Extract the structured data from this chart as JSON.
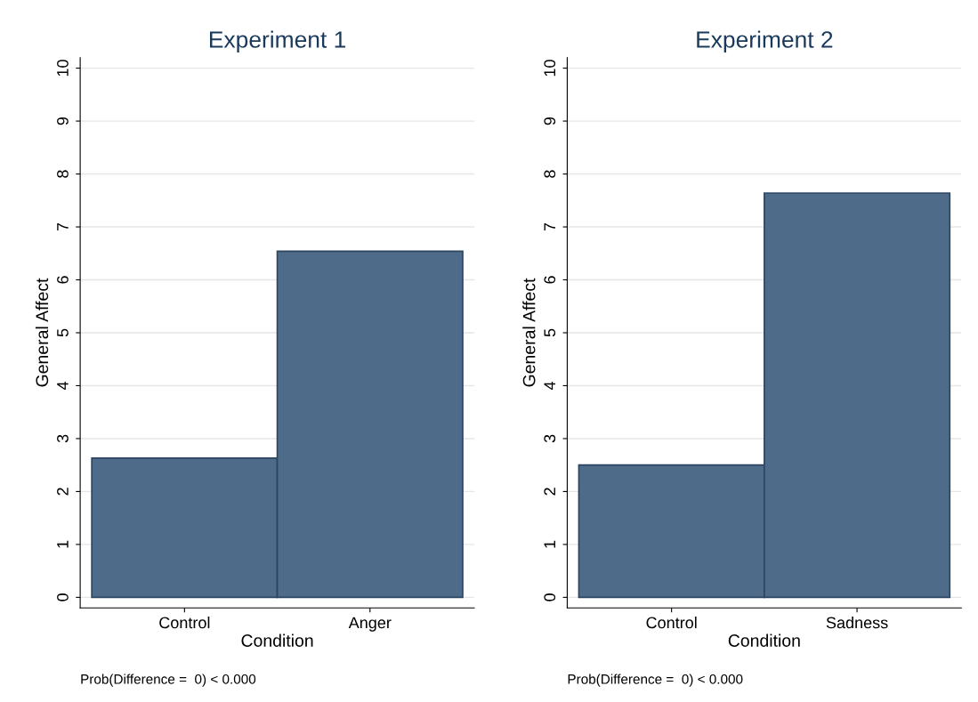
{
  "chart_data": [
    {
      "type": "bar",
      "title": "Experiment 1",
      "xlabel": "Condition",
      "ylabel": "General Affect",
      "categories": [
        "Control",
        "Anger"
      ],
      "values": [
        2.63,
        6.54
      ],
      "color": "#4e6b89",
      "ylim": [
        -0.2,
        10.2
      ],
      "yticks": [
        0,
        1,
        2,
        3,
        4,
        5,
        6,
        7,
        8,
        9,
        10
      ],
      "grid": "y",
      "annotations": [
        "Prob(Difference =  0) < 0.000"
      ]
    },
    {
      "type": "bar",
      "title": "Experiment 2",
      "xlabel": "Condition",
      "ylabel": "General Affect",
      "categories": [
        "Control",
        "Sadness"
      ],
      "values": [
        2.5,
        7.64
      ],
      "color": "#4e6b89",
      "ylim": [
        -0.2,
        10.2
      ],
      "yticks": [
        0,
        1,
        2,
        3,
        4,
        5,
        6,
        7,
        8,
        9,
        10
      ],
      "grid": "y",
      "annotations": [
        "Prob(Difference =  0) < 0.000"
      ]
    }
  ]
}
